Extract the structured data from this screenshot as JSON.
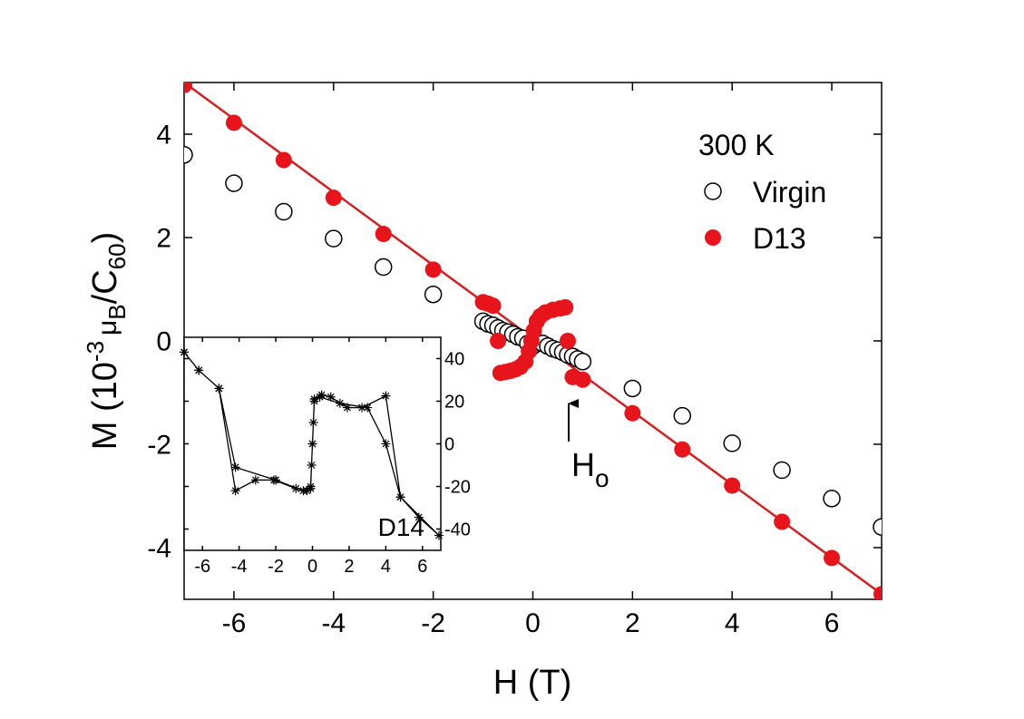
{
  "chart_data": [
    {
      "type": "scatter",
      "xlabel": "H (T)",
      "ylabel_parts": [
        "M (10",
        "-3",
        "μ",
        "B",
        "/C",
        "60",
        ")"
      ],
      "xlim": [
        -7,
        7
      ],
      "ylim": [
        -5,
        5
      ],
      "xticks": [
        -6,
        -4,
        -2,
        0,
        2,
        4,
        6
      ],
      "yticks": [
        -4,
        -2,
        0,
        2,
        4
      ],
      "annotations": {
        "temperature": "300 K",
        "arrow_label": "H",
        "arrow_label_sub": "o"
      },
      "series": [
        {
          "name": "Virgin",
          "marker": "open",
          "color": "#000000",
          "x": [
            -7,
            -6,
            -5,
            -4,
            -3,
            -2,
            -1,
            -0.9,
            -0.8,
            -0.7,
            -0.6,
            -0.5,
            -0.4,
            -0.3,
            -0.2,
            -0.1,
            0,
            0.1,
            0.2,
            0.3,
            0.4,
            0.5,
            0.6,
            0.7,
            0.8,
            0.9,
            1,
            2,
            3,
            4,
            5,
            6,
            7
          ],
          "values": [
            3.6,
            3.05,
            2.5,
            1.98,
            1.43,
            0.9,
            0.38,
            0.33,
            0.3,
            0.25,
            0.2,
            0.17,
            0.13,
            0.08,
            0.05,
            -0.05,
            -0.1,
            -0.03,
            -0.05,
            -0.1,
            -0.15,
            -0.18,
            -0.22,
            -0.27,
            -0.3,
            -0.35,
            -0.4,
            -0.92,
            -1.45,
            -1.98,
            -2.5,
            -3.05,
            -3.6
          ]
        },
        {
          "name": "D13",
          "marker": "filled",
          "color": "#e8141b",
          "x": [
            -7,
            -6,
            -5,
            -4,
            -3,
            -2,
            -1,
            -0.9,
            -0.8,
            -0.7,
            -0.65,
            -0.55,
            -0.45,
            -0.35,
            -0.25,
            -0.15,
            -0.08,
            -0.03,
            0.02,
            0.08,
            0.15,
            0.25,
            0.4,
            0.55,
            0.65,
            0.7,
            0.8,
            1,
            2,
            3,
            4,
            5,
            6,
            7
          ],
          "values": [
            4.95,
            4.22,
            3.5,
            2.77,
            2.07,
            1.38,
            0.75,
            0.72,
            0.68,
            0,
            -0.62,
            -0.6,
            -0.58,
            -0.55,
            -0.5,
            -0.4,
            -0.2,
            0,
            0.2,
            0.38,
            0.48,
            0.55,
            0.6,
            0.63,
            0.65,
            0,
            -0.7,
            -0.75,
            -1.4,
            -2.1,
            -2.8,
            -3.5,
            -4.2,
            -4.9
          ]
        }
      ],
      "fit": {
        "color": "#d42020",
        "x": [
          -7,
          7
        ],
        "values": [
          5,
          -4.9
        ]
      }
    },
    {
      "type": "line",
      "xlim": [
        -7,
        7
      ],
      "ylim": [
        -50,
        50
      ],
      "xticks": [
        -6,
        -4,
        -2,
        0,
        2,
        4,
        6
      ],
      "yticks": [
        -40,
        -20,
        0,
        20,
        40
      ],
      "series": [
        {
          "name": "D14",
          "color": "#000000",
          "x": [
            -7,
            -6.2,
            -5.1,
            -4.2,
            -3.1,
            -2.1,
            -0.9,
            -0.3,
            -0.1,
            -0.05,
            0,
            0.05,
            0.1,
            0.5,
            1,
            1.9,
            2.7,
            4,
            4.8,
            5.8,
            6.9,
            4.8,
            4,
            3,
            1.5,
            0.4,
            0.1,
            0,
            -0.1,
            -0.5,
            -2,
            -4.2,
            -5.1,
            -6.2,
            -7
          ],
          "values": [
            43,
            34.5,
            26,
            -22,
            -17,
            -17,
            -21,
            -22,
            -21,
            -10,
            0,
            10,
            21,
            23,
            22,
            17,
            17,
            22.5,
            -25,
            -34.5,
            -43,
            -25,
            0,
            17,
            19,
            22,
            20,
            0,
            -20,
            -22,
            -17,
            -11,
            26,
            34.5,
            43
          ]
        }
      ]
    }
  ]
}
